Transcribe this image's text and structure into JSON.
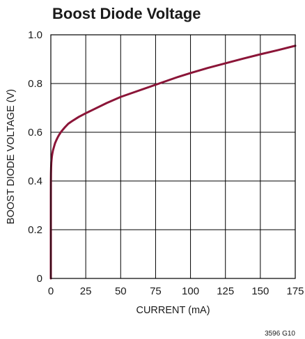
{
  "chart_data": {
    "type": "line",
    "title": "Boost Diode Voltage",
    "xlabel": "CURRENT (mA)",
    "ylabel": "BOOST DIODE VOLTAGE (V)",
    "xlim": [
      0,
      175
    ],
    "ylim": [
      0,
      1.0
    ],
    "x_ticks": [
      0,
      25,
      50,
      75,
      100,
      125,
      150,
      175
    ],
    "x_tick_labels": [
      "0",
      "25",
      "50",
      "75",
      "100",
      "125",
      "150",
      "175"
    ],
    "y_ticks": [
      0,
      0.2,
      0.4,
      0.6,
      0.8,
      1.0
    ],
    "y_tick_labels": [
      "0",
      "0.2",
      "0.4",
      "0.6",
      "0.8",
      "1.0"
    ],
    "grid": true,
    "series": [
      {
        "color": "#8B1538",
        "x": [
          0,
          0.02,
          0.05,
          0.1,
          0.2,
          0.35,
          0.5,
          0.75,
          1,
          1.5,
          2,
          3,
          4,
          5,
          6,
          7.5,
          10,
          12.5,
          15,
          20,
          25,
          30,
          40,
          50,
          60,
          75,
          90,
          100,
          112.5,
          125,
          137.5,
          150,
          162.5,
          175
        ],
        "y": [
          0,
          0.34,
          0.4,
          0.43,
          0.455,
          0.475,
          0.485,
          0.5,
          0.51,
          0.525,
          0.535,
          0.555,
          0.568,
          0.58,
          0.59,
          0.603,
          0.62,
          0.635,
          0.645,
          0.663,
          0.678,
          0.692,
          0.72,
          0.745,
          0.765,
          0.795,
          0.825,
          0.843,
          0.864,
          0.883,
          0.902,
          0.92,
          0.937,
          0.955
        ]
      }
    ]
  },
  "figure_id": "3596 G10"
}
